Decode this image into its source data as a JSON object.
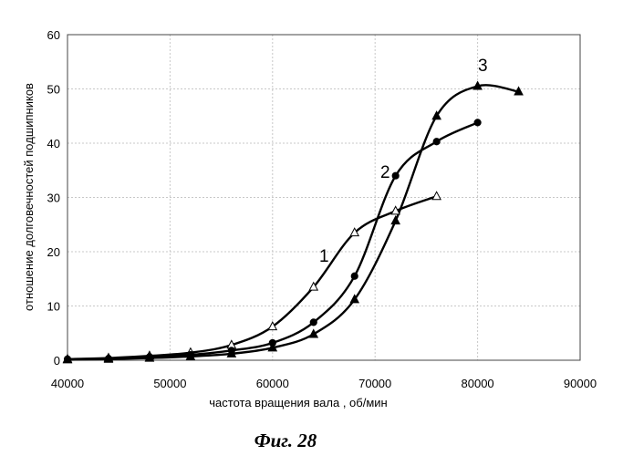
{
  "chart_data": {
    "type": "line",
    "title": "",
    "xlabel": "частота вращения вала , об/мин",
    "ylabel": "отношение долговечностей подшипников",
    "xlim": [
      40000,
      90000
    ],
    "ylim": [
      0,
      60
    ],
    "x_ticks": [
      40000,
      50000,
      60000,
      70000,
      80000,
      90000
    ],
    "y_ticks": [
      0,
      10,
      20,
      30,
      40,
      50,
      60
    ],
    "grid": true,
    "series": [
      {
        "name": "1",
        "marker": "open-triangle",
        "x": [
          40000,
          44000,
          48000,
          52000,
          56000,
          60000,
          64000,
          68000,
          72000,
          76000
        ],
        "y": [
          0.2,
          0.4,
          0.8,
          1.4,
          2.8,
          6.2,
          13.5,
          23.5,
          27.5,
          30.2
        ]
      },
      {
        "name": "2",
        "marker": "filled-circle",
        "x": [
          40000,
          44000,
          48000,
          52000,
          56000,
          60000,
          64000,
          68000,
          72000,
          76000,
          80000
        ],
        "y": [
          0.2,
          0.3,
          0.6,
          1.0,
          1.8,
          3.2,
          7.0,
          15.5,
          34.0,
          40.3,
          43.8
        ]
      },
      {
        "name": "3",
        "marker": "filled-triangle",
        "x": [
          40000,
          44000,
          48000,
          52000,
          56000,
          60000,
          64000,
          68000,
          72000,
          76000,
          80000,
          84000
        ],
        "y": [
          0.1,
          0.2,
          0.4,
          0.7,
          1.2,
          2.3,
          4.8,
          11.2,
          25.7,
          45.0,
          50.5,
          49.5
        ]
      }
    ],
    "series_labels": [
      "1",
      "2",
      "3"
    ]
  },
  "figure": {
    "caption": "Фиг. 28"
  }
}
